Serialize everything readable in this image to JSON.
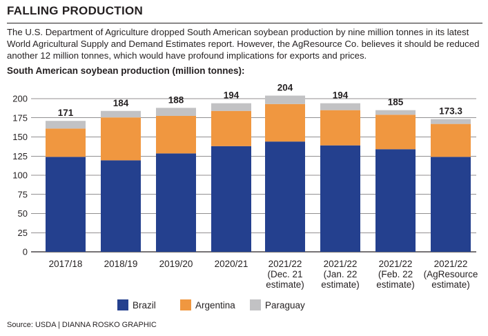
{
  "header": {
    "title": "FALLING PRODUCTION",
    "description": "The U.S. Department of Agriculture dropped South American soybean production by nine million tonnes in its latest World Agricultural Supply and Demand Estimates report. However, the AgResource Co. believes it should be reduced another 12 million tonnes, which would have profound implications for exports and prices."
  },
  "footer": {
    "source": "Source: USDA | DIANNA ROSKO GRAPHIC"
  },
  "colors": {
    "brazil": "#24408e",
    "argentina": "#f09740",
    "paraguay": "#c2c2c4",
    "grid": "#231f20"
  },
  "chart_data": {
    "type": "bar",
    "stacked": true,
    "title": "South American soybean production (million tonnes):",
    "xlabel": "",
    "ylabel": "",
    "ylim": [
      0,
      200
    ],
    "yticks": [
      0,
      25,
      50,
      75,
      100,
      125,
      150,
      175,
      200
    ],
    "grid": true,
    "legend_position": "bottom",
    "categories": [
      [
        "2017/18"
      ],
      [
        "2018/19"
      ],
      [
        "2019/20"
      ],
      [
        "2020/21"
      ],
      [
        "2021/22",
        "(Dec. 21",
        "estimate)"
      ],
      [
        "2021/22",
        "(Jan. 22",
        "estimate)"
      ],
      [
        "2021/22",
        "(Feb. 22",
        "estimate)"
      ],
      [
        "2021/22",
        "(AgResource",
        "estimate)"
      ]
    ],
    "series": [
      {
        "name": "Brazil",
        "values": [
          124,
          119.5,
          128.5,
          138,
          144,
          139,
          134,
          124
        ]
      },
      {
        "name": "Argentina",
        "values": [
          37,
          56,
          49,
          46,
          49,
          46,
          45,
          43
        ]
      },
      {
        "name": "Paraguay",
        "values": [
          10,
          8.5,
          10.5,
          10,
          11,
          9,
          6,
          6.3
        ]
      }
    ],
    "totals": [
      "171",
      "184",
      "188",
      "194",
      "204",
      "194",
      "185",
      "173.3"
    ]
  }
}
